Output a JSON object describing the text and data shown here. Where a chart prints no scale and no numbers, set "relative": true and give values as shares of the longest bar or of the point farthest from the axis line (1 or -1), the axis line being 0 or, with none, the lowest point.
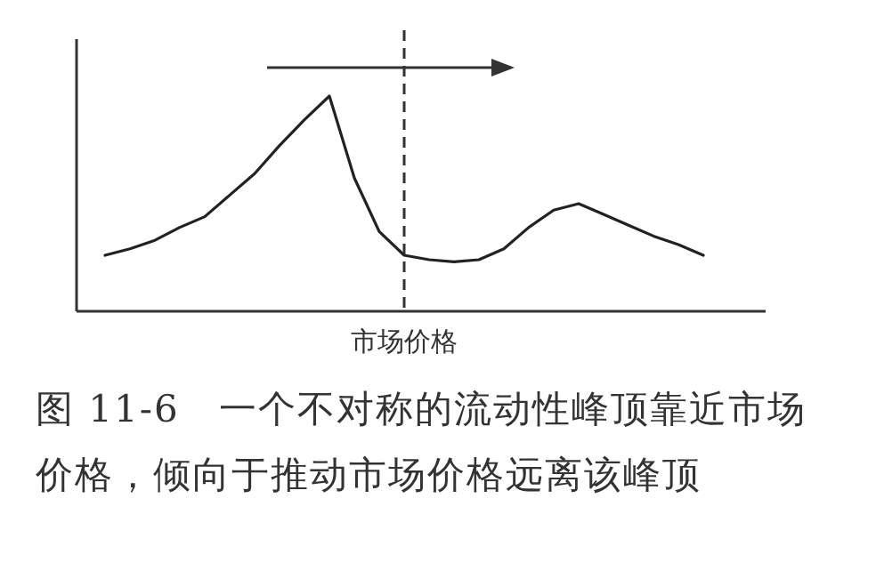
{
  "chart_data": {
    "type": "line",
    "relative": true,
    "categories": [
      null,
      null,
      null,
      null,
      null,
      null,
      null,
      null,
      null,
      null,
      null,
      null,
      null,
      null,
      null,
      null,
      null,
      null,
      null,
      null,
      null,
      null,
      null,
      null,
      null
    ],
    "series": [
      {
        "color": "#222222",
        "values": [
          0.26,
          0.29,
          0.33,
          0.39,
          0.44,
          0.54,
          0.64,
          0.77,
          0.89,
          1,
          0.62,
          0.37,
          0.26,
          0.24,
          0.23,
          0.24,
          0.29,
          0.39,
          0.47,
          0.5,
          0.45,
          0.4,
          0.35,
          0.31,
          0.26
        ]
      }
    ],
    "xlabel": "市场价格",
    "marker": "none",
    "line_style": "solid",
    "annotations": [
      "图 11-6　一个不对称的流动性峰顶靠近市场价格，倾向于推动市场价格远离该峰顶"
    ]
  }
}
